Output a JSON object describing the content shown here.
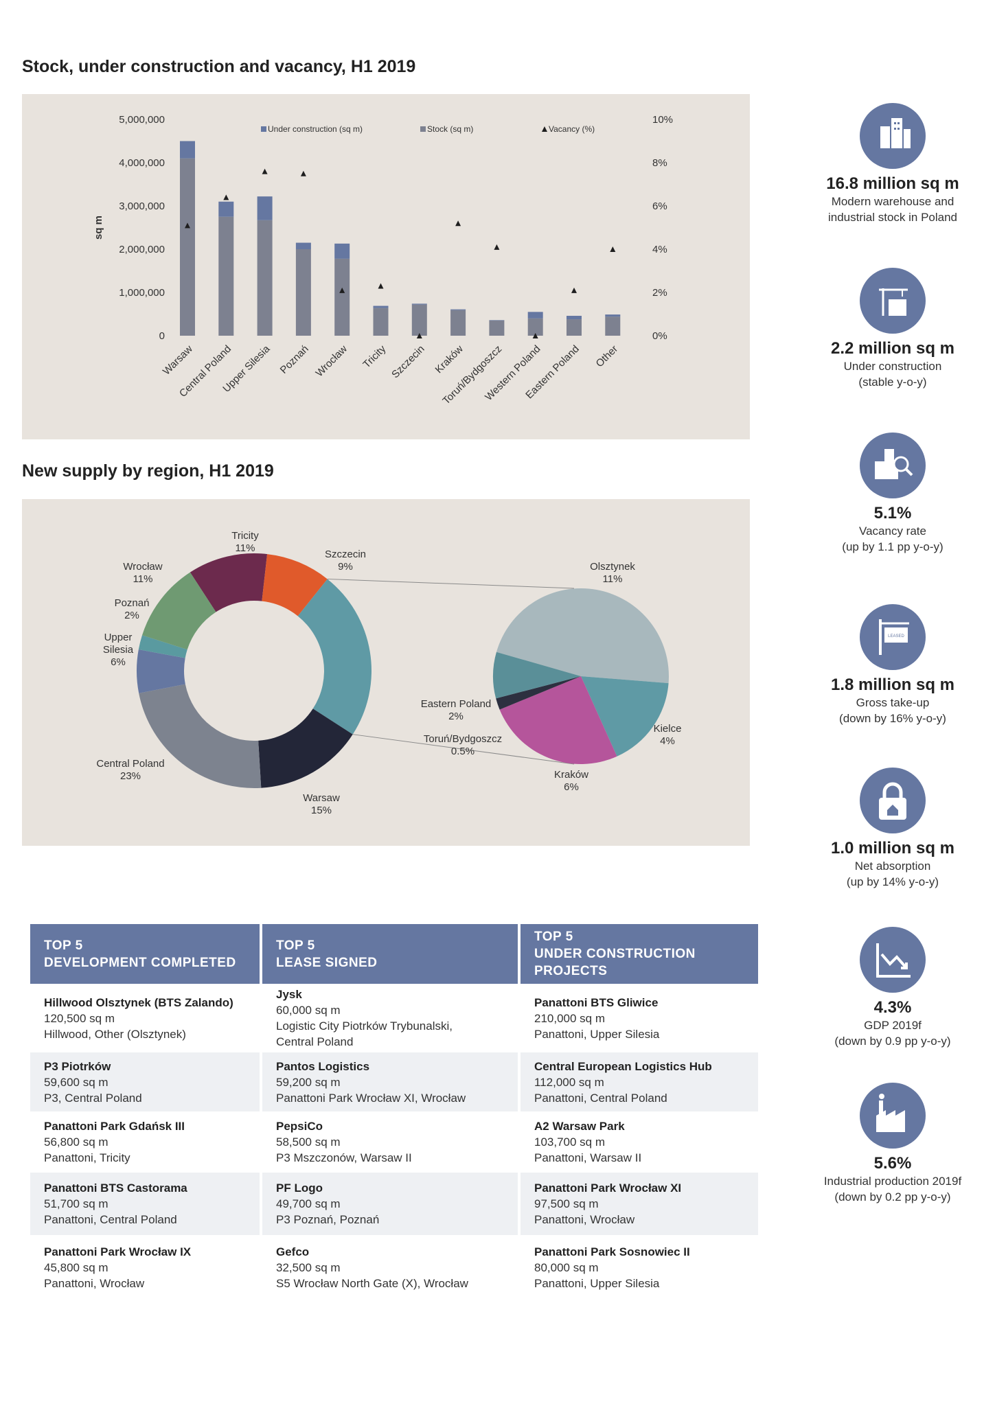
{
  "bar_section": {
    "title": "Stock, under construction and vacancy, H1 2019"
  },
  "pie_section": {
    "title": "New supply by region, H1 2019"
  },
  "chart_data": [
    {
      "type": "bar",
      "title": "Stock, under construction and vacancy, H1 2019",
      "ylabel": "sq m",
      "ylim": [
        0,
        5000000
      ],
      "y2lim": [
        0,
        10
      ],
      "y_ticks": [
        "0",
        "1,000,000",
        "2,000,000",
        "3,000,000",
        "4,000,000",
        "5,000,000"
      ],
      "y2_ticks": [
        "0%",
        "2%",
        "4%",
        "6%",
        "8%",
        "10%"
      ],
      "legend_position": "top",
      "categories": [
        "Warsaw",
        "Central Poland",
        "Upper Silesia",
        "Poznań",
        "Wrocław",
        "Tricity",
        "Szczecin",
        "Kraków",
        "Toruń/Bydgoszcz",
        "Western Poland",
        "Eastern Poland",
        "Other"
      ],
      "series": [
        {
          "name": "Under construction (sq m)",
          "kind": "bar-stacked",
          "color": "#6577a1",
          "values": [
            400000,
            350000,
            550000,
            150000,
            350000,
            50000,
            20000,
            20000,
            10000,
            150000,
            80000,
            50000
          ]
        },
        {
          "name": "Stock (sq m)",
          "kind": "bar-stacked",
          "color": "#7d8190",
          "values": [
            4100000,
            2750000,
            2670000,
            2000000,
            1780000,
            640000,
            720000,
            590000,
            350000,
            400000,
            380000,
            440000
          ]
        },
        {
          "name": "Vacancy (%)",
          "kind": "marker-y2",
          "color": "#1e1e1e",
          "values": [
            5.1,
            6.4,
            7.6,
            7.5,
            2.1,
            2.3,
            0,
            5.2,
            4.1,
            0,
            2.1,
            4.0
          ]
        }
      ]
    },
    {
      "type": "pie",
      "title": "New supply by region, H1 2019",
      "slices": [
        {
          "label": "Tricity",
          "value": 11,
          "display": "11%",
          "color": "#6c2a4d"
        },
        {
          "label": "Szczecin",
          "value": 9,
          "display": "9%",
          "color": "#e05a2b"
        },
        {
          "label": "Other",
          "value": 23.5,
          "display": "",
          "color": "#5f9aa5"
        },
        {
          "label": "Warsaw",
          "value": 15,
          "display": "15%",
          "color": "#232638"
        },
        {
          "label": "Central Poland",
          "value": 23,
          "display": "23%",
          "color": "#7d838f"
        },
        {
          "label": "Upper Silesia",
          "value": 6,
          "display": "6%",
          "color": "#6577a1"
        },
        {
          "label": "Poznań",
          "value": 2,
          "display": "2%",
          "color": "#5a9aa0"
        },
        {
          "label": "Wrocław",
          "value": 11,
          "display": "11%",
          "color": "#6f9a72"
        }
      ],
      "breakdown_of": "Other",
      "breakdown": [
        {
          "label": "Olsztynek",
          "value": 11,
          "display": "11%",
          "color": "#a8b8bd"
        },
        {
          "label": "Kielce",
          "value": 4,
          "display": "4%",
          "color": "#5f9aa5"
        },
        {
          "label": "Kraków",
          "value": 6,
          "display": "6%",
          "color": "#b5559b"
        },
        {
          "label": "Toruń/Bydgoszcz",
          "value": 0.5,
          "display": "0.5%",
          "color": "#2d3040"
        },
        {
          "label": "Eastern Poland",
          "value": 2,
          "display": "2%",
          "color": "#5a8f98"
        }
      ]
    }
  ],
  "table": {
    "headers": [
      [
        "TOP 5",
        "DEVELOPMENT COMPLETED"
      ],
      [
        "TOP 5",
        "LEASE SIGNED"
      ],
      [
        "TOP 5",
        "UNDER CONSTRUCTION",
        "PROJECTS"
      ]
    ],
    "rows": [
      [
        {
          "name": "Hillwood Olsztynek (BTS Zalando)",
          "lines": [
            "120,500 sq m",
            "Hillwood, Other (Olsztynek)"
          ]
        },
        {
          "name": "Jysk",
          "lines": [
            "60,000 sq m",
            "Logistic City Piotrków Trybunalski,",
            "Central Poland"
          ]
        },
        {
          "name": "Panattoni BTS Gliwice",
          "lines": [
            "210,000 sq m",
            "Panattoni, Upper Silesia"
          ]
        }
      ],
      [
        {
          "name": "P3 Piotrków",
          "lines": [
            "59,600 sq m",
            "P3, Central Poland"
          ]
        },
        {
          "name": "Pantos Logistics",
          "lines": [
            "59,200 sq m",
            "Panattoni Park Wrocław XI, Wrocław"
          ]
        },
        {
          "name": "Central European Logistics Hub",
          "lines": [
            "112,000 sq m",
            "Panattoni, Central Poland"
          ]
        }
      ],
      [
        {
          "name": "Panattoni Park Gdańsk III",
          "lines": [
            "56,800 sq m",
            "Panattoni, Tricity"
          ]
        },
        {
          "name": "PepsiCo",
          "lines": [
            "58,500 sq m",
            "P3 Mszczonów, Warsaw II"
          ]
        },
        {
          "name": "A2 Warsaw Park",
          "lines": [
            "103,700 sq m",
            "Panattoni, Warsaw II"
          ]
        }
      ],
      [
        {
          "name": "Panattoni BTS Castorama",
          "lines": [
            "51,700 sq m",
            "Panattoni, Central Poland"
          ]
        },
        {
          "name": "PF Logo",
          "lines": [
            "49,700 sq m",
            "P3 Poznań, Poznań"
          ]
        },
        {
          "name": "Panattoni Park Wrocław XI",
          "lines": [
            "97,500 sq m",
            "Panattoni, Wrocław"
          ]
        }
      ],
      [
        {
          "name": "Panattoni Park Wrocław IX",
          "lines": [
            "45,800 sq m",
            "Panattoni, Wrocław"
          ]
        },
        {
          "name": "Gefco",
          "lines": [
            "32,500 sq m",
            "S5 Wrocław North Gate (X), Wrocław"
          ]
        },
        {
          "name": "Panattoni Park Sosnowiec II",
          "lines": [
            "80,000 sq m",
            "Panattoni, Upper Silesia"
          ]
        }
      ]
    ]
  },
  "sidebar": [
    {
      "icon": "buildings-icon",
      "value": "16.8 million sq m",
      "desc": [
        "Modern warehouse and",
        "industrial stock in Poland"
      ]
    },
    {
      "icon": "crane-building-icon",
      "value": "2.2 million sq m",
      "desc": [
        "Under construction",
        "(stable y-o-y)"
      ]
    },
    {
      "icon": "magnifier-building-icon",
      "value": "5.1%",
      "desc": [
        "Vacancy rate",
        "(up by 1.1 pp y-o-y)"
      ]
    },
    {
      "icon": "leased-sign-icon",
      "value": "1.8 million sq m",
      "desc": [
        "Gross take-up",
        "(down by 16% y-o-y)"
      ],
      "sign_text": "LEASED"
    },
    {
      "icon": "padlock-house-icon",
      "value": "1.0 million sq m",
      "desc": [
        "Net absorption",
        "(up by 14% y-o-y)"
      ]
    },
    {
      "icon": "chart-trend-icon",
      "value": "4.3%",
      "desc": [
        "GDP 2019f",
        "(down by 0.9 pp y-o-y)"
      ]
    },
    {
      "icon": "factory-icon",
      "value": "5.6%",
      "desc": [
        "Industrial production 2019f",
        "(down by 0.2 pp y-o-y)"
      ]
    }
  ],
  "colors": {
    "accent": "#6577a1",
    "panel": "#e8e3dd"
  }
}
